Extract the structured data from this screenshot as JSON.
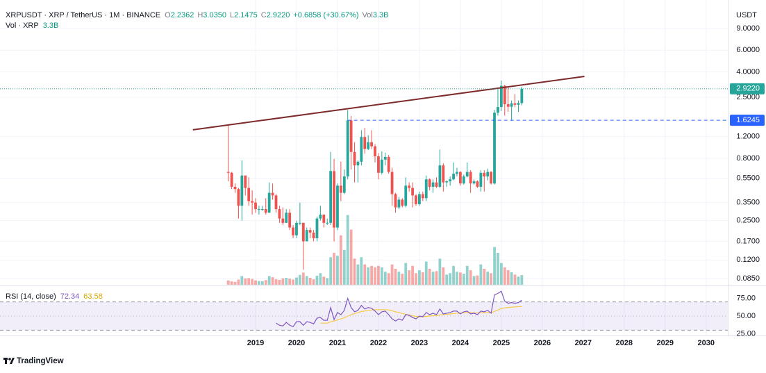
{
  "header": {
    "symbol": "XRPUSDT · XRP / TetherUS · 1M · BINANCE",
    "ohlc": [
      {
        "key": "O",
        "value": "2.2362"
      },
      {
        "key": "H",
        "value": "3.0350"
      },
      {
        "key": "L",
        "value": "2.1475"
      },
      {
        "key": "C",
        "value": "2.9220"
      }
    ],
    "change": "+0.6858 (+30.67%)",
    "vol_key": "Vol",
    "vol_value": "3.3B",
    "volume_label": "Vol · XRP",
    "volume_value": "3.3B",
    "currency": "USDT"
  },
  "chart_data": {
    "type": "candlestick",
    "log_scale": true,
    "grid": true,
    "up_color": "#26a69a",
    "down_color": "#ef5350",
    "x": [
      "2018-05",
      "2018-06",
      "2018-07",
      "2018-08",
      "2018-09",
      "2018-10",
      "2018-11",
      "2018-12",
      "2019-01",
      "2019-02",
      "2019-03",
      "2019-04",
      "2019-05",
      "2019-06",
      "2019-07",
      "2019-08",
      "2019-09",
      "2019-10",
      "2019-11",
      "2019-12",
      "2020-01",
      "2020-02",
      "2020-03",
      "2020-04",
      "2020-05",
      "2020-06",
      "2020-07",
      "2020-08",
      "2020-09",
      "2020-10",
      "2020-11",
      "2020-12",
      "2021-01",
      "2021-02",
      "2021-03",
      "2021-04",
      "2021-05",
      "2021-06",
      "2021-07",
      "2021-08",
      "2021-09",
      "2021-10",
      "2021-11",
      "2021-12",
      "2022-01",
      "2022-02",
      "2022-03",
      "2022-04",
      "2022-05",
      "2022-06",
      "2022-07",
      "2022-08",
      "2022-09",
      "2022-10",
      "2022-11",
      "2022-12",
      "2023-01",
      "2023-02",
      "2023-03",
      "2023-04",
      "2023-05",
      "2023-06",
      "2023-07",
      "2023-08",
      "2023-09",
      "2023-10",
      "2023-11",
      "2023-12",
      "2024-01",
      "2024-02",
      "2024-03",
      "2024-04",
      "2024-05",
      "2024-06",
      "2024-07",
      "2024-08",
      "2024-09",
      "2024-10",
      "2024-11",
      "2024-12",
      "2025-01",
      "2025-02",
      "2025-03",
      "2025-04",
      "2025-05",
      "2025-06",
      "2025-07"
    ],
    "open": [
      0.62,
      0.61,
      0.47,
      0.45,
      0.33,
      0.58,
      0.46,
      0.36,
      0.35,
      0.31,
      0.31,
      0.31,
      0.29,
      0.42,
      0.4,
      0.31,
      0.26,
      0.24,
      0.29,
      0.22,
      0.19,
      0.24,
      0.24,
      0.17,
      0.21,
      0.2,
      0.18,
      0.26,
      0.28,
      0.24,
      0.24,
      0.63,
      0.22,
      0.48,
      0.42,
      0.57,
      1.62,
      0.9,
      0.7,
      0.75,
      1.19,
      0.95,
      1.08,
      1.0,
      0.83,
      0.61,
      0.78,
      0.82,
      0.62,
      0.41,
      0.32,
      0.37,
      0.33,
      0.48,
      0.46,
      0.4,
      0.34,
      0.41,
      0.38,
      0.54,
      0.47,
      0.51,
      0.47,
      0.7,
      0.51,
      0.52,
      0.54,
      0.6,
      0.62,
      0.5,
      0.57,
      0.62,
      0.5,
      0.52,
      0.47,
      0.61,
      0.57,
      0.62,
      0.5,
      1.87,
      2.08,
      3.09,
      2.19,
      2.09,
      2.23,
      2.17,
      2.2362
    ],
    "high": [
      1.48,
      0.62,
      0.5,
      0.46,
      0.77,
      0.58,
      0.56,
      0.44,
      0.38,
      0.33,
      0.33,
      0.38,
      0.51,
      0.5,
      0.41,
      0.33,
      0.32,
      0.31,
      0.31,
      0.23,
      0.25,
      0.35,
      0.24,
      0.22,
      0.22,
      0.21,
      0.27,
      0.33,
      0.28,
      0.26,
      0.9,
      0.79,
      0.5,
      0.75,
      0.65,
      1.97,
      1.76,
      1.08,
      0.77,
      1.35,
      1.41,
      1.23,
      1.35,
      1.04,
      0.88,
      0.91,
      0.89,
      0.85,
      0.67,
      0.42,
      0.39,
      0.38,
      0.56,
      0.51,
      0.51,
      0.41,
      0.43,
      0.43,
      0.58,
      0.55,
      0.54,
      0.56,
      0.94,
      0.73,
      0.53,
      0.57,
      0.74,
      0.67,
      0.63,
      0.59,
      0.74,
      0.64,
      0.54,
      0.53,
      0.64,
      0.64,
      0.66,
      0.63,
      1.97,
      2.9,
      3.4,
      3.15,
      3.0,
      2.35,
      2.65,
      2.35,
      3.035
    ],
    "low": [
      0.52,
      0.45,
      0.42,
      0.26,
      0.25,
      0.4,
      0.33,
      0.28,
      0.29,
      0.28,
      0.3,
      0.28,
      0.29,
      0.37,
      0.29,
      0.24,
      0.23,
      0.24,
      0.21,
      0.18,
      0.18,
      0.23,
      0.1,
      0.17,
      0.18,
      0.17,
      0.17,
      0.25,
      0.22,
      0.23,
      0.23,
      0.17,
      0.21,
      0.36,
      0.41,
      0.54,
      0.65,
      0.51,
      0.51,
      0.7,
      0.87,
      0.93,
      0.95,
      0.74,
      0.54,
      0.59,
      0.7,
      0.6,
      0.33,
      0.29,
      0.31,
      0.32,
      0.32,
      0.43,
      0.32,
      0.33,
      0.33,
      0.36,
      0.36,
      0.44,
      0.42,
      0.46,
      0.46,
      0.43,
      0.47,
      0.48,
      0.53,
      0.57,
      0.48,
      0.49,
      0.56,
      0.42,
      0.49,
      0.46,
      0.43,
      0.43,
      0.53,
      0.49,
      0.49,
      1.77,
      1.93,
      1.77,
      1.9,
      1.61,
      2.07,
      1.9,
      2.1475
    ],
    "close": [
      0.61,
      0.47,
      0.45,
      0.33,
      0.58,
      0.46,
      0.36,
      0.35,
      0.31,
      0.31,
      0.31,
      0.29,
      0.42,
      0.4,
      0.31,
      0.26,
      0.24,
      0.29,
      0.22,
      0.19,
      0.24,
      0.24,
      0.17,
      0.21,
      0.2,
      0.18,
      0.26,
      0.28,
      0.24,
      0.24,
      0.63,
      0.22,
      0.48,
      0.42,
      0.57,
      1.62,
      0.9,
      0.7,
      0.75,
      1.19,
      0.95,
      1.08,
      1.0,
      0.83,
      0.61,
      0.78,
      0.82,
      0.62,
      0.41,
      0.32,
      0.37,
      0.33,
      0.48,
      0.46,
      0.4,
      0.34,
      0.41,
      0.38,
      0.54,
      0.47,
      0.51,
      0.47,
      0.7,
      0.51,
      0.52,
      0.54,
      0.6,
      0.62,
      0.5,
      0.57,
      0.62,
      0.5,
      0.52,
      0.47,
      0.61,
      0.57,
      0.62,
      0.5,
      1.87,
      2.08,
      3.09,
      2.19,
      2.09,
      2.23,
      2.17,
      2.24,
      2.922
    ],
    "volume": [
      1.5,
      1.2,
      1.0,
      1.8,
      3.0,
      2.2,
      2.3,
      2.0,
      1.5,
      1.3,
      1.2,
      1.6,
      3.0,
      2.6,
      1.9,
      1.7,
      2.2,
      2.4,
      2.1,
      1.8,
      2.5,
      3.4,
      4.2,
      3.0,
      2.4,
      1.9,
      3.1,
      4.0,
      2.8,
      2.3,
      9.5,
      11,
      10,
      17,
      12,
      24,
      19,
      9,
      7,
      9.5,
      7,
      6,
      6.5,
      6,
      6.5,
      6,
      4.5,
      4,
      7,
      5.5,
      4.5,
      3.8,
      7.5,
      5,
      6.5,
      4,
      5,
      4.3,
      8,
      5.5,
      4.5,
      4.7,
      9,
      6,
      3.5,
      4,
      6.5,
      4.5,
      4.2,
      3.8,
      6.5,
      5,
      3,
      3.2,
      7,
      5.5,
      4.5,
      4,
      13,
      11,
      7.5,
      6,
      5,
      4.3,
      3.5,
      2.8,
      3.3
    ],
    "volume_lim": [
      0,
      98
    ],
    "close_label": "2.9220",
    "xlim": [
      2012.76,
      2030.53
    ],
    "xticks": [
      2019,
      2020,
      2021,
      2022,
      2023,
      2024,
      2025,
      2026,
      2027,
      2028,
      2029,
      2030
    ],
    "ylim": [
      0.0756,
      15.3
    ],
    "yticks": [
      {
        "value": 9,
        "label": "9.0000"
      },
      {
        "value": 6,
        "label": "6.0000"
      },
      {
        "value": 4,
        "label": "4.0000"
      },
      {
        "value": 2.5,
        "label": "2.5000"
      },
      {
        "value": 1.2,
        "label": "1.2000"
      },
      {
        "value": 0.8,
        "label": "0.8000"
      },
      {
        "value": 0.55,
        "label": "0.5500"
      },
      {
        "value": 0.35,
        "label": "0.3500"
      },
      {
        "value": 0.25,
        "label": "0.2500"
      },
      {
        "value": 0.17,
        "label": "0.1700"
      },
      {
        "value": 0.12,
        "label": "0.1200"
      },
      {
        "value": 0.085,
        "label": "0.0850"
      }
    ],
    "trendline": {
      "color": "#7f2a2a",
      "points": [
        [
          2017.47,
          1.36
        ],
        [
          2027.03,
          3.68
        ]
      ]
    },
    "price_line": {
      "value": 1.6245,
      "from": 2021.25,
      "color": "#2962ff"
    },
    "rsi": {
      "title": "RSI (14, close)",
      "color": "#7e57c2",
      "ma_color": "#f7c948",
      "values": [
        null,
        null,
        null,
        null,
        null,
        null,
        null,
        null,
        null,
        null,
        null,
        null,
        null,
        null,
        40,
        37,
        36,
        41,
        37,
        35,
        42,
        42,
        37,
        42,
        41,
        39,
        47,
        48,
        44,
        44,
        62,
        45,
        55,
        52,
        58,
        75,
        62,
        56,
        58,
        65,
        60,
        62,
        61,
        57,
        52,
        56,
        57,
        52,
        46,
        43,
        46,
        44,
        52,
        51,
        48,
        46,
        50,
        49,
        55,
        52,
        54,
        52,
        60,
        53,
        54,
        55,
        57,
        57,
        53,
        56,
        57,
        53,
        54,
        52,
        57,
        56,
        58,
        54,
        80,
        82,
        85,
        71,
        68,
        69,
        68,
        69,
        72.34
      ],
      "ma": [
        null,
        null,
        null,
        null,
        null,
        null,
        null,
        null,
        null,
        null,
        null,
        null,
        null,
        null,
        null,
        null,
        null,
        null,
        null,
        null,
        null,
        null,
        null,
        null,
        null,
        null,
        null,
        40,
        40,
        40,
        42,
        43,
        44.5,
        46,
        47.5,
        50,
        52,
        53.5,
        55,
        56.5,
        57,
        58,
        58.5,
        59,
        59,
        59,
        59,
        58.5,
        57.5,
        56,
        55,
        53.5,
        52.5,
        51.5,
        50.5,
        49.5,
        49,
        49,
        49.5,
        50,
        50.5,
        50.5,
        51.5,
        52,
        52.5,
        53,
        53.5,
        54,
        54,
        54.5,
        55,
        55,
        54.5,
        54.5,
        54.5,
        55,
        55,
        54.5,
        56.5,
        58.5,
        60.5,
        61.5,
        62,
        62.5,
        63,
        63.2,
        63.58
      ],
      "ylim": [
        23.5,
        92.2
      ],
      "yticks": [
        {
          "value": 75,
          "label": "75.00"
        },
        {
          "value": 50,
          "label": "50.00"
        },
        {
          "value": 25,
          "label": "25.00"
        }
      ],
      "band": [
        30,
        70
      ],
      "midline": 50
    }
  },
  "footer": {
    "brand": "TradingView"
  }
}
